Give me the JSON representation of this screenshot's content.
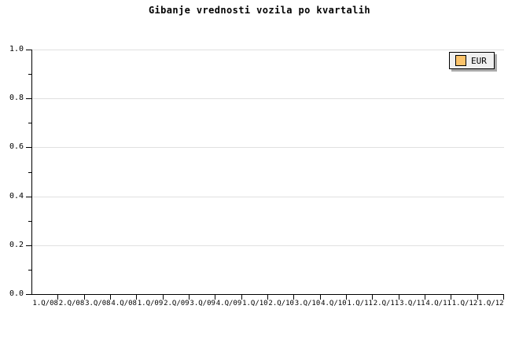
{
  "chart_data": {
    "type": "line",
    "title": "Gibanje vrednosti vozila po kvartalih",
    "categories": [
      "1.Q/08",
      "2.Q/08",
      "3.Q/08",
      "4.Q/08",
      "1.Q/09",
      "2.Q/09",
      "3.Q/09",
      "4.Q/09",
      "1.Q/10",
      "2.Q/10",
      "3.Q/10",
      "4.Q/10",
      "1.Q/11",
      "2.Q/11",
      "3.Q/11",
      "4.Q/11",
      "1.Q/12",
      "1.Q/12"
    ],
    "series": [
      {
        "name": "EUR",
        "color": "#fbc36b",
        "values": []
      }
    ],
    "xlabel": "",
    "ylabel": "",
    "ylim": [
      0.0,
      1.0
    ],
    "y_major_ticks": [
      0.0,
      0.2,
      0.4,
      0.6,
      0.8,
      1.0
    ],
    "y_major_tick_labels": [
      "0.0",
      "0.2",
      "0.4",
      "0.6",
      "0.8",
      "1.0"
    ],
    "y_minor_ticks": [
      0.1,
      0.3,
      0.5,
      0.7,
      0.9
    ],
    "grid": "horizontal gridlines at major y ticks",
    "legend_position": "top-right"
  },
  "legend": {
    "items": [
      {
        "label": "EUR",
        "swatch_color": "#fbc36b"
      }
    ]
  },
  "colors": {
    "background": "#ffffff",
    "axis": "#000000",
    "gridline": "#e0e0e0",
    "text": "#000000",
    "legend_background": "#f0f0f0",
    "legend_border": "#000000",
    "legend_shadow": "#aaaaaa",
    "series_eur": "#fbc36b"
  }
}
